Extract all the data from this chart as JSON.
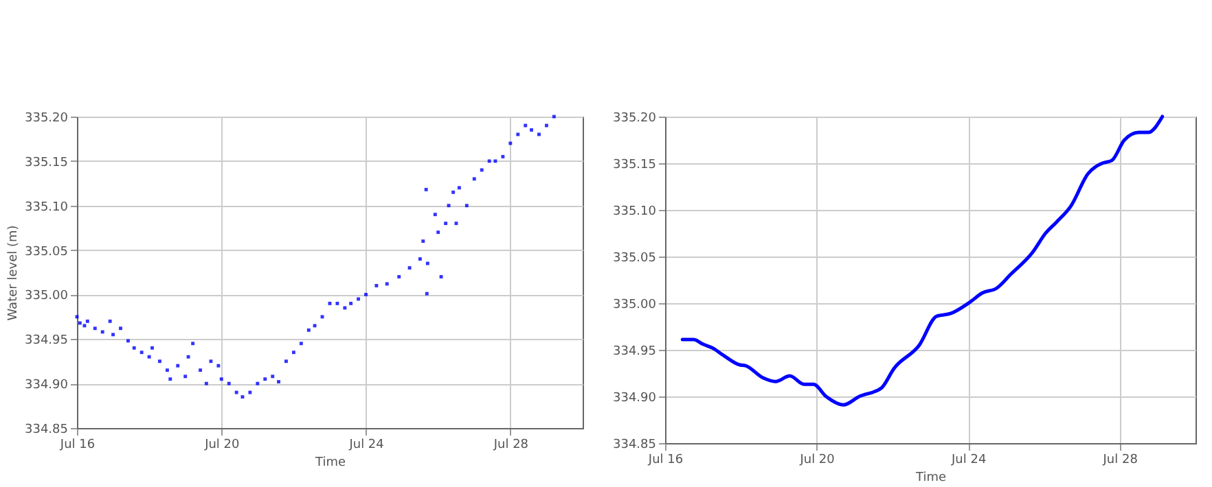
{
  "chart_data": [
    {
      "type": "scatter",
      "xlabel": "Time",
      "ylabel": "Water level (m)",
      "color": "#0000ff",
      "marker": "square",
      "grid": true,
      "xlim": [
        "--07-16",
        "--07-30"
      ],
      "xticks": [
        {
          "value": "--07-16",
          "label": "Jul 16"
        },
        {
          "value": "--07-20",
          "label": "Jul 20"
        },
        {
          "value": "--07-24",
          "label": "Jul 24"
        },
        {
          "value": "--07-28",
          "label": "Jul 28"
        }
      ],
      "ylim": [
        334.85,
        335.2
      ],
      "yticks": [
        {
          "value": 334.85,
          "label": "334.85"
        },
        {
          "value": 334.9,
          "label": "334.90"
        },
        {
          "value": 334.95,
          "label": "334.95"
        },
        {
          "value": 335.0,
          "label": "335.00"
        },
        {
          "value": 335.05,
          "label": "335.05"
        },
        {
          "value": 335.1,
          "label": "335.10"
        },
        {
          "value": 335.15,
          "label": "335.15"
        },
        {
          "value": 335.2,
          "label": "335.20"
        }
      ],
      "x": [
        "--07-16T00:00",
        "--07-16T02:00",
        "--07-16T05:00",
        "--07-16T07:00",
        "--07-16T12:00",
        "--07-16T17:00",
        "--07-16T22:00",
        "--07-17T00:00",
        "--07-17T05:00",
        "--07-17T10:00",
        "--07-17T14:00",
        "--07-17T19:00",
        "--07-18T00:00",
        "--07-18T02:00",
        "--07-18T07:00",
        "--07-18T12:00",
        "--07-18T14:00",
        "--07-18T19:00",
        "--07-19T00:00",
        "--07-19T02:00",
        "--07-19T05:00",
        "--07-19T10:00",
        "--07-19T14:00",
        "--07-19T17:00",
        "--07-19T22:00",
        "--07-20T00:00",
        "--07-20T05:00",
        "--07-20T10:00",
        "--07-20T14:00",
        "--07-20T19:00",
        "--07-21T00:00",
        "--07-21T05:00",
        "--07-21T10:00",
        "--07-21T14:00",
        "--07-21T19:00",
        "--07-22T00:00",
        "--07-22T05:00",
        "--07-22T10:00",
        "--07-22T14:00",
        "--07-22T19:00",
        "--07-23T00:00",
        "--07-23T05:00",
        "--07-23T10:00",
        "--07-23T14:00",
        "--07-23T19:00",
        "--07-24T00:00",
        "--07-24T07:00",
        "--07-24T14:00",
        "--07-24T22:00",
        "--07-25T05:00",
        "--07-25T12:00",
        "--07-25T14:00",
        "--07-25T16:00",
        "--07-25T16:30",
        "--07-25T17:00",
        "--07-25T22:00",
        "--07-26T00:00",
        "--07-26T02:00",
        "--07-26T05:00",
        "--07-26T07:00",
        "--07-26T10:00",
        "--07-26T12:00",
        "--07-26T14:00",
        "--07-26T19:00",
        "--07-27T00:00",
        "--07-27T05:00",
        "--07-27T10:00",
        "--07-27T14:00",
        "--07-27T19:00",
        "--07-28T00:00",
        "--07-28T05:00",
        "--07-28T10:00",
        "--07-28T14:00",
        "--07-28T19:00",
        "--07-29T00:00",
        "--07-29T05:00"
      ],
      "values": [
        334.975,
        334.968,
        334.965,
        334.97,
        334.962,
        334.958,
        334.97,
        334.955,
        334.962,
        334.948,
        334.94,
        334.935,
        334.93,
        334.94,
        334.925,
        334.915,
        334.905,
        334.92,
        334.908,
        334.93,
        334.945,
        334.915,
        334.9,
        334.925,
        334.92,
        334.905,
        334.9,
        334.89,
        334.885,
        334.89,
        334.9,
        334.905,
        334.908,
        334.902,
        334.925,
        334.935,
        334.945,
        334.96,
        334.965,
        334.975,
        334.99,
        334.99,
        334.985,
        334.99,
        334.995,
        335.0,
        335.01,
        335.012,
        335.02,
        335.03,
        335.04,
        335.06,
        335.118,
        335.001,
        335.035,
        335.09,
        335.07,
        335.02,
        335.08,
        335.1,
        335.115,
        335.08,
        335.12,
        335.1,
        335.13,
        335.14,
        335.15,
        335.15,
        335.155,
        335.17,
        335.18,
        335.19,
        335.185,
        335.18,
        335.19,
        335.2
      ]
    },
    {
      "type": "line",
      "xlabel": "Time",
      "color": "#0000ff",
      "grid": true,
      "xlim": [
        "--07-16",
        "--07-30"
      ],
      "xticks": [
        {
          "value": "--07-16",
          "label": "Jul 16"
        },
        {
          "value": "--07-20",
          "label": "Jul 20"
        },
        {
          "value": "--07-24",
          "label": "Jul 24"
        },
        {
          "value": "--07-28",
          "label": "Jul 28"
        }
      ],
      "ylim": [
        334.85,
        335.2
      ],
      "yticks": [
        {
          "value": 334.85,
          "label": "334.85"
        },
        {
          "value": 334.9,
          "label": "334.90"
        },
        {
          "value": 334.95,
          "label": "334.95"
        },
        {
          "value": 335.0,
          "label": "335.00"
        },
        {
          "value": 335.05,
          "label": "335.05"
        },
        {
          "value": 335.1,
          "label": "335.10"
        },
        {
          "value": 335.15,
          "label": "335.15"
        },
        {
          "value": 335.2,
          "label": "335.20"
        }
      ],
      "x": [
        "--07-16T11:00",
        "--07-16T18:00",
        "--07-17T00:00",
        "--07-17T06:00",
        "--07-17T13:00",
        "--07-17T23:00",
        "--07-18T03:00",
        "--07-18T14:00",
        "--07-18T22:00",
        "--07-19T07:00",
        "--07-19T16:00",
        "--07-19T22:00",
        "--07-20T06:00",
        "--07-20T17:00",
        "--07-21T03:00",
        "--07-21T17:00",
        "--07-22T01:00",
        "--07-22T17:00",
        "--07-23T04:00",
        "--07-23T13:00",
        "--07-24T01:00",
        "--07-24T09:00",
        "--07-24T18:00",
        "--07-25T03:00",
        "--07-25T17:00",
        "--07-26T01:00",
        "--07-26T08:00",
        "--07-26T17:00",
        "--07-27T04:00",
        "--07-27T13:00",
        "--07-27T19:00",
        "--07-28T03:00",
        "--07-28T12:00",
        "--07-28T18:00",
        "--07-29T03:00"
      ],
      "values": [
        334.961,
        334.961,
        334.956,
        334.952,
        334.944,
        334.934,
        334.933,
        334.92,
        334.916,
        334.922,
        334.913,
        334.913,
        334.9,
        334.891,
        334.9,
        334.909,
        334.93,
        334.955,
        334.986,
        334.989,
        335.001,
        335.011,
        335.016,
        335.031,
        335.055,
        335.075,
        335.087,
        335.104,
        335.139,
        335.15,
        335.153,
        335.175,
        335.183,
        335.183,
        335.2
      ]
    }
  ]
}
